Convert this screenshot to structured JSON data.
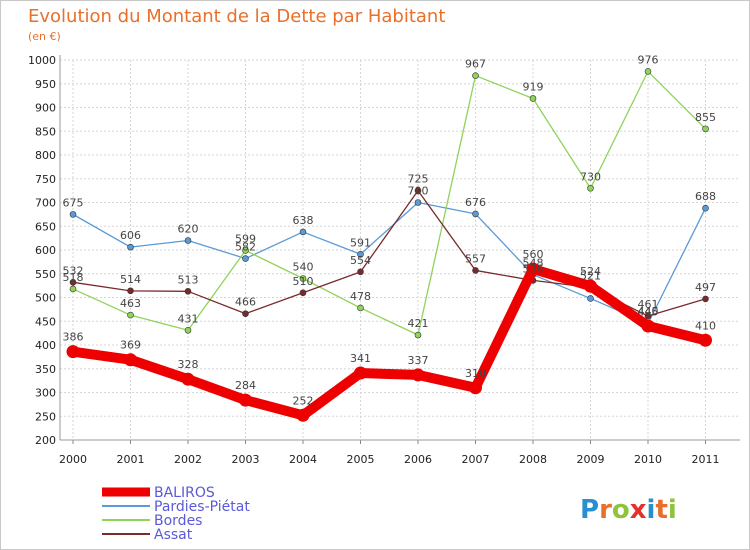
{
  "chart_data": {
    "type": "line",
    "title": "Evolution du Montant de la Dette par Habitant",
    "subtitle": "(en €)",
    "categories": [
      "2000",
      "2001",
      "2002",
      "2003",
      "2004",
      "2005",
      "2006",
      "2007",
      "2008",
      "2009",
      "2010",
      "2011"
    ],
    "ylim": [
      200,
      1000
    ],
    "yticks": [
      200,
      250,
      300,
      350,
      400,
      450,
      500,
      550,
      600,
      650,
      700,
      750,
      800,
      850,
      900,
      950,
      1000
    ],
    "grid": true,
    "legend_position": "bottom-left",
    "series": [
      {
        "name": "Pardies-Piétat",
        "color": "#5a9ad6",
        "values": [
          675,
          606,
          620,
          582,
          638,
          591,
          700,
          676,
          548,
          498,
          445,
          688
        ],
        "labels": [
          "675",
          "606",
          "620",
          "582",
          "638",
          "591",
          "700",
          "676",
          "548",
          "",
          "445",
          "688"
        ]
      },
      {
        "name": "Bordes",
        "color": "#8fd35a",
        "values": [
          518,
          463,
          431,
          599,
          540,
          478,
          421,
          967,
          919,
          730,
          976,
          855
        ],
        "labels": [
          "518",
          "463",
          "431",
          "599",
          "540",
          "478",
          "421",
          "967",
          "919",
          "730",
          "976",
          "855"
        ]
      },
      {
        "name": "Assat",
        "color": "#7a2a2a",
        "values": [
          532,
          514,
          513,
          466,
          510,
          554,
          725,
          557,
          536,
          521,
          461,
          497
        ],
        "labels": [
          "532",
          "514",
          "513",
          "466",
          "510",
          "554",
          "725",
          "557",
          "536",
          "521",
          "461",
          "497"
        ]
      },
      {
        "name": "BALIROS",
        "color": "#ee0000",
        "values": [
          386,
          369,
          328,
          284,
          252,
          341,
          337,
          310,
          560,
          524,
          440,
          410
        ],
        "labels": [
          "386",
          "369",
          "328",
          "284",
          "252",
          "341",
          "337",
          "310",
          "560",
          "524",
          "440",
          "410"
        ]
      }
    ],
    "legend_order": [
      "BALIROS",
      "Pardies-Piétat",
      "Bordes",
      "Assat"
    ]
  },
  "brand": {
    "name": "Proxiti",
    "letters": [
      "P",
      "r",
      "o",
      "x",
      "i",
      "t",
      "i"
    ],
    "colors": [
      "#2a8fd0",
      "#e8702a",
      "#8fc43a",
      "#e8302a",
      "#2a8fd0",
      "#e8702a",
      "#8fc43a"
    ]
  }
}
